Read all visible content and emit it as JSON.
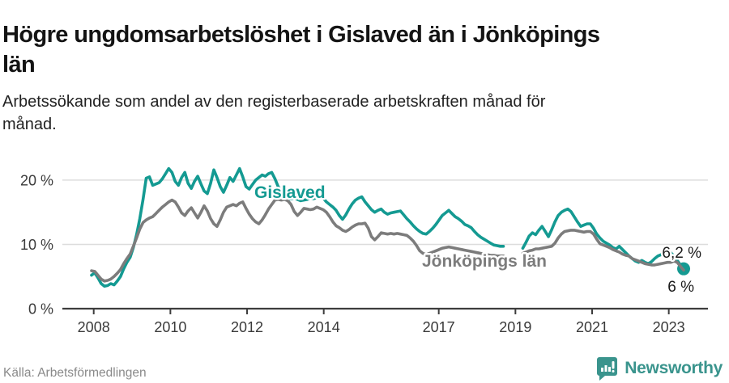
{
  "header": {
    "title": "Högre ungdomsarbetslöshet i Gislaved än i Jönköpings län",
    "subtitle": "Arbetssökande som andel av den registerbaserade arbetskraften månad för månad."
  },
  "footer": {
    "source": "Källa: Arbetsförmedlingen",
    "brand": "Newsworthy"
  },
  "colors": {
    "gislaved": "#149a92",
    "county": "#7c7c7c",
    "grid": "#dddddd",
    "axis": "#3d3d3d",
    "tick_text": "#3a3a3a",
    "value_text": "#1a1a1a",
    "brand_teal": "#3a948d"
  },
  "chart_data": {
    "type": "line",
    "x_start": "2008-01",
    "x_end": "2023-05",
    "points_per_series": 185,
    "unit": "%",
    "ylim": [
      0,
      24
    ],
    "grid": "horizontal",
    "y_ticks": [
      {
        "value": 0,
        "label": "0 %"
      },
      {
        "value": 10,
        "label": "10 %"
      },
      {
        "value": 20,
        "label": "20 %"
      }
    ],
    "x_ticks": [
      {
        "year": 2008,
        "label": "2008"
      },
      {
        "year": 2010,
        "label": "2010"
      },
      {
        "year": 2012,
        "label": "2012"
      },
      {
        "year": 2014,
        "label": "2014"
      },
      {
        "year": 2017,
        "label": "2017"
      },
      {
        "year": 2019,
        "label": "2019"
      },
      {
        "year": 2021,
        "label": "2021"
      },
      {
        "year": 2023,
        "label": "2023"
      }
    ],
    "gap_note": "both series have missing months Oct 2018 - Feb 2019",
    "series": [
      {
        "name": "Gislaved",
        "color_key": "gislaved",
        "last_value": 6.2,
        "end_label": "6,2 %",
        "values": [
          5.2,
          5.6,
          4.8,
          3.9,
          3.5,
          3.6,
          3.9,
          3.7,
          4.3,
          5.0,
          6.2,
          7.2,
          8.0,
          9.5,
          11.5,
          14.0,
          17.0,
          20.3,
          20.5,
          19.2,
          19.4,
          19.6,
          20.2,
          21.0,
          21.8,
          21.2,
          19.8,
          19.2,
          20.4,
          21.2,
          19.5,
          18.7,
          19.8,
          20.6,
          19.4,
          18.3,
          17.9,
          19.5,
          21.6,
          20.4,
          19.0,
          18.1,
          19.2,
          20.4,
          19.8,
          20.8,
          21.8,
          20.5,
          19.0,
          18.6,
          19.3,
          20.0,
          20.4,
          20.8,
          20.6,
          21.0,
          21.2,
          20.2,
          19.0,
          18.2,
          17.4,
          17.0,
          17.1,
          17.2,
          17.0,
          16.8,
          16.9,
          17.0,
          17.2,
          17.1,
          17.3,
          17.4,
          17.2,
          16.6,
          16.2,
          15.8,
          15.3,
          14.5,
          13.9,
          14.6,
          15.5,
          16.3,
          16.9,
          17.2,
          17.4,
          16.6,
          16.0,
          15.4,
          15.0,
          15.3,
          15.5,
          15.0,
          14.7,
          14.9,
          15.0,
          15.1,
          15.2,
          14.6,
          14.0,
          13.5,
          12.9,
          12.4,
          12.0,
          11.7,
          11.6,
          12.0,
          12.5,
          13.1,
          13.8,
          14.5,
          14.9,
          15.3,
          14.8,
          14.3,
          14.0,
          13.6,
          13.1,
          12.9,
          12.6,
          12.0,
          11.5,
          11.1,
          10.8,
          10.5,
          10.2,
          9.9,
          9.8,
          9.7,
          9.7,
          null,
          null,
          null,
          null,
          null,
          9.4,
          10.3,
          11.3,
          11.8,
          11.5,
          12.2,
          12.8,
          12.0,
          11.2,
          12.3,
          13.5,
          14.5,
          15.0,
          15.3,
          15.5,
          15.1,
          14.3,
          13.5,
          12.8,
          13.0,
          13.2,
          13.2,
          12.5,
          11.6,
          11.0,
          10.5,
          10.2,
          9.9,
          9.5,
          9.3,
          9.7,
          9.2,
          8.7,
          8.2,
          7.8,
          7.4,
          7.2,
          7.5,
          7.2,
          7.0,
          7.3,
          7.8,
          8.2,
          8.4,
          8.5,
          8.6,
          8.7,
          8.2,
          7.5,
          6.8,
          6.2
        ]
      },
      {
        "name": "Jönköpings län",
        "color_key": "county",
        "last_value": 6.0,
        "end_label": "6 %",
        "values": [
          5.9,
          5.8,
          5.2,
          4.6,
          4.3,
          4.4,
          4.6,
          5.0,
          5.5,
          6.1,
          7.0,
          7.8,
          8.5,
          9.7,
          11.0,
          12.4,
          13.4,
          13.8,
          14.1,
          14.3,
          14.8,
          15.3,
          15.8,
          16.2,
          16.6,
          16.9,
          16.6,
          15.8,
          14.9,
          14.5,
          15.2,
          15.7,
          14.9,
          14.1,
          15.0,
          16.0,
          15.2,
          14.0,
          13.2,
          12.8,
          13.8,
          15.0,
          15.8,
          16.0,
          16.2,
          16.0,
          16.4,
          16.6,
          15.6,
          14.7,
          14.0,
          13.5,
          13.2,
          13.8,
          14.6,
          15.5,
          16.2,
          16.9,
          17.0,
          16.9,
          17.0,
          16.8,
          16.2,
          15.1,
          14.5,
          15.0,
          15.6,
          15.5,
          15.4,
          15.5,
          15.8,
          15.6,
          15.4,
          15.0,
          14.3,
          13.5,
          12.9,
          12.6,
          12.2,
          12.0,
          12.3,
          12.7,
          13.0,
          13.2,
          13.2,
          13.3,
          12.5,
          11.2,
          10.7,
          11.2,
          11.8,
          11.7,
          11.6,
          11.7,
          11.6,
          11.7,
          11.6,
          11.5,
          11.4,
          11.0,
          10.5,
          9.8,
          9.0,
          8.6,
          8.4,
          8.6,
          8.8,
          9.0,
          9.2,
          9.4,
          9.5,
          9.6,
          9.5,
          9.4,
          9.3,
          9.2,
          9.1,
          9.0,
          8.9,
          8.8,
          8.7,
          8.6,
          8.5,
          8.4,
          8.3,
          8.3,
          8.2,
          8.2,
          8.2,
          null,
          null,
          null,
          null,
          null,
          8.6,
          8.8,
          9.0,
          9.1,
          9.3,
          9.3,
          9.4,
          9.5,
          9.6,
          9.7,
          10.2,
          11.0,
          11.6,
          12.0,
          12.1,
          12.2,
          12.2,
          12.1,
          12.0,
          11.9,
          12.0,
          12.0,
          11.6,
          10.8,
          10.1,
          9.9,
          9.7,
          9.5,
          9.2,
          9.0,
          8.8,
          8.5,
          8.3,
          8.2,
          7.8,
          7.6,
          7.4,
          7.2,
          7.0,
          6.9,
          6.8,
          6.8,
          6.9,
          7.0,
          7.1,
          7.2,
          7.2,
          7.4,
          7.2,
          6.6,
          6.0
        ]
      }
    ],
    "annotations": {
      "gislaved_label": "Gislaved",
      "county_label": "Jönköpings län",
      "gislaved_end_label": "6,2 %",
      "county_end_label": "6 %"
    }
  }
}
